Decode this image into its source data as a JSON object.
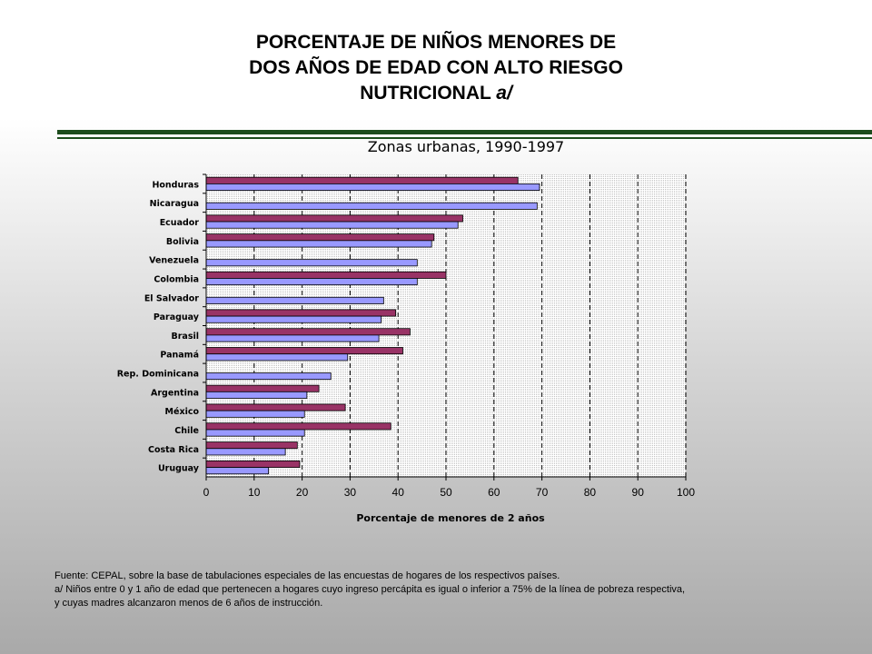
{
  "title_line1": "PORCENTAJE DE NIÑOS MENORES DE",
  "title_line2": "DOS AÑOS DE EDAD CON ALTO RIESGO",
  "title_line3_main": "NUTRICIONAL ",
  "title_line3_ref": "a/",
  "notes": {
    "source": "Fuente: CEPAL, sobre la base de tabulaciones especiales de las encuestas de hogares de los respectivos países.",
    "note_a_line1": "a/ Niños entre 0 y 1 año de edad que pertenecen a hogares cuyo ingreso percápita es igual o inferior a 75% de la línea de pobreza respectiva,",
    "note_a_line2": "y cuyas madres alcanzaron menos de 6 años de instrucción."
  },
  "colors": {
    "series_a": "#993366",
    "series_b": "#9999ff",
    "plot_bg": "#c0c0c0",
    "rule": "#1e4d1e"
  },
  "chart_data": {
    "type": "bar",
    "orientation": "horizontal",
    "subtitle": "Zonas urbanas, 1990-1997",
    "xlabel": "Porcentaje de menores de 2 años",
    "ylabel": "",
    "xlim": [
      0,
      100
    ],
    "xticks": [
      0,
      10,
      20,
      30,
      40,
      50,
      60,
      70,
      80,
      90,
      100
    ],
    "grid": "vertical dashed",
    "legend": "none",
    "categories": [
      "Honduras",
      "Nicaragua",
      "Ecuador",
      "Bolivia",
      "Venezuela",
      "Colombia",
      "El Salvador",
      "Paraguay",
      "Brasil",
      "Panamá",
      "Rep. Dominicana",
      "Argentina",
      "México",
      "Chile",
      "Costa Rica",
      "Uruguay"
    ],
    "series": [
      {
        "values": [
          65,
          null,
          53.5,
          47.5,
          null,
          50,
          null,
          39.5,
          42.5,
          41,
          null,
          23.5,
          29,
          38.5,
          19,
          19.5
        ]
      },
      {
        "values": [
          69.5,
          69,
          52.5,
          47,
          44,
          44,
          37,
          36.5,
          36,
          29.5,
          26,
          21,
          20.5,
          20.5,
          16.5,
          13
        ]
      }
    ]
  }
}
